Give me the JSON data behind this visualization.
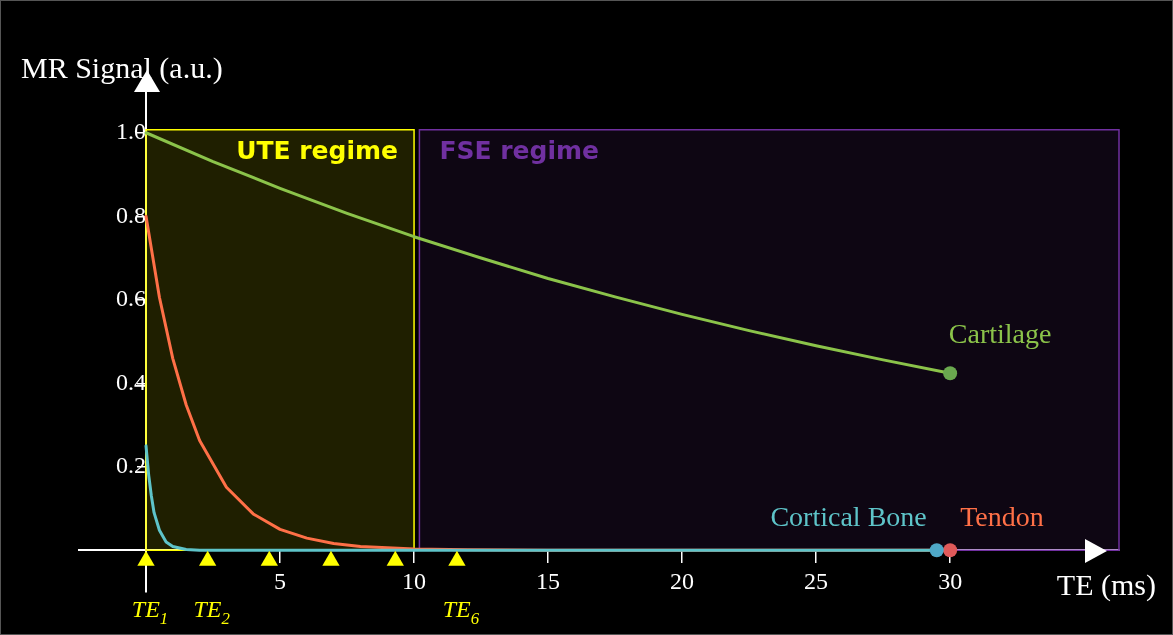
{
  "chart_data": {
    "type": "line",
    "xlabel": "TE (ms)",
    "ylabel": "MR Signal (a.u.)",
    "xlim": [
      -2.5,
      36.3
    ],
    "ylim": [
      -0.1,
      1.1
    ],
    "xticks": [
      {
        "value": 0,
        "label": null
      },
      5,
      10,
      15,
      20,
      25,
      30
    ],
    "yticks": [
      0.2,
      0.4,
      0.6,
      0.8,
      {
        "value": 1,
        "label": "1.0"
      }
    ],
    "grid": false,
    "legend": false,
    "marker": "none",
    "line_style": "solid",
    "bands": [
      {
        "axis": "x",
        "from": 0,
        "to": 10,
        "label": "UTE regime",
        "color": "#ffff00"
      },
      {
        "axis": "x",
        "from": 10.2,
        "to": 36.3,
        "label": "FSE regime",
        "color": "#7030a0"
      }
    ],
    "annotations": [
      {
        "text": "TE$_{1}$",
        "x": 0,
        "y": -0.025
      },
      {
        "text": "TE$_{2}$",
        "x": 2.3,
        "y": -0.025
      },
      {
        "text": "TE$_{6}$",
        "x": 11.6,
        "y": -0.025
      }
    ],
    "series": [
      {
        "name": "Cartilage",
        "color": "#8bc34a",
        "x": [
          0,
          2.5,
          5,
          7.5,
          10,
          12.5,
          15,
          17.5,
          20,
          22.5,
          25,
          27.5,
          30
        ],
        "values": [
          1,
          0.931,
          0.867,
          0.807,
          0.751,
          0.7,
          0.651,
          0.607,
          0.565,
          0.526,
          0.49,
          0.456,
          0.424
        ]
      },
      {
        "name": "Cortical Bone",
        "color": "#5ec4c9",
        "x": [
          0,
          0.1,
          0.2,
          0.3,
          0.5,
          0.75,
          1,
          1.5,
          2,
          5,
          10,
          20,
          29.5
        ],
        "values": [
          0.25,
          0.18,
          0.13,
          0.09,
          0.048,
          0.02,
          0.009,
          0.002,
          0,
          0,
          0,
          0,
          0
        ]
      },
      {
        "name": "Tendon",
        "color": "#ff7047",
        "x": [
          0,
          0.5,
          1,
          1.5,
          2,
          3,
          4,
          5,
          6,
          7,
          8,
          10,
          12,
          15,
          20,
          25,
          30
        ],
        "values": [
          0.8,
          0.606,
          0.459,
          0.348,
          0.263,
          0.151,
          0.087,
          0.05,
          0.029,
          0.016,
          0.009,
          0.003,
          0.001,
          0,
          0,
          0,
          0
        ]
      },
      {
        "type": "scatter",
        "marker": "circle",
        "color": "#6aa84f",
        "x": [
          30
        ],
        "values": [
          0.424
        ]
      },
      {
        "type": "scatter",
        "marker": "circle",
        "color": "#4fa8c8",
        "x": [
          29.5
        ],
        "values": [
          0
        ]
      },
      {
        "type": "scatter",
        "marker": "circle",
        "color": "#e05a5a",
        "x": [
          30
        ],
        "values": [
          0
        ]
      },
      {
        "type": "scatter",
        "marker": "triangle",
        "color": "#ffff00",
        "x": [
          0,
          2.3,
          4.6,
          6.9,
          9.3,
          11.6
        ],
        "values": [
          -0.025,
          -0.025,
          -0.025,
          -0.025,
          -0.025,
          -0.025
        ]
      }
    ]
  }
}
